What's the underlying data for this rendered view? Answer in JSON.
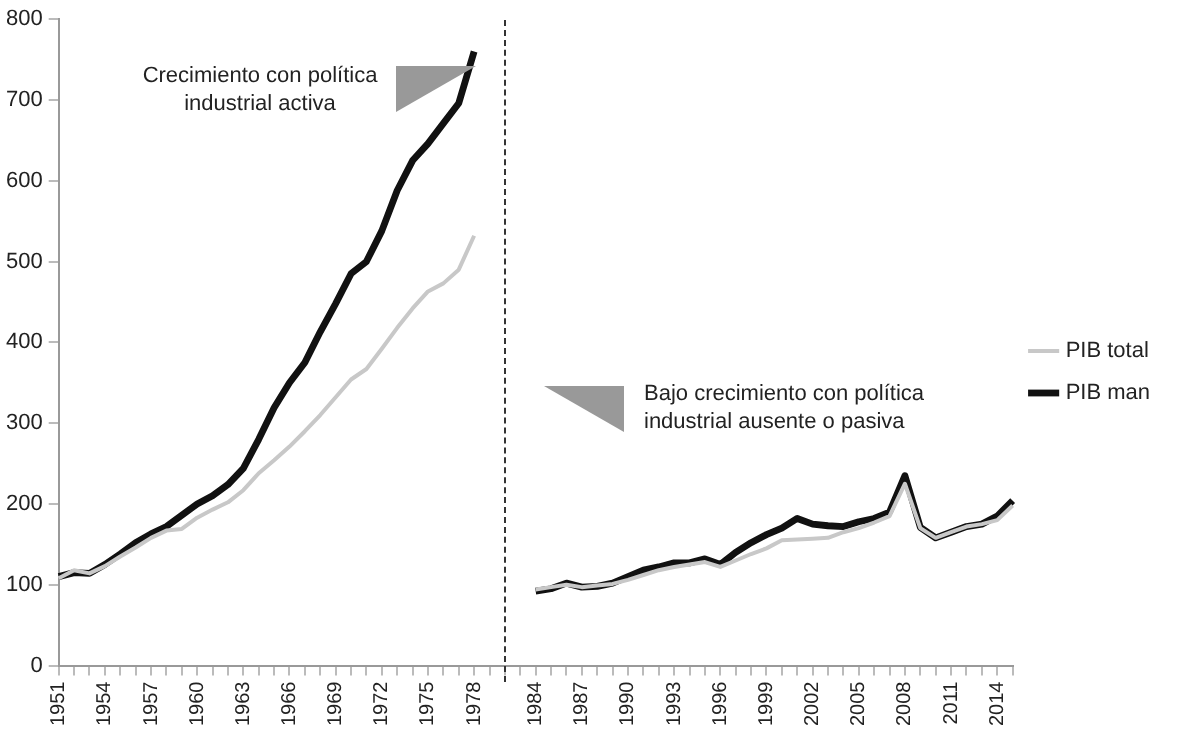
{
  "chart_data": {
    "type": "line",
    "categories": [
      "1951",
      null,
      null,
      "1954",
      null,
      null,
      "1957",
      null,
      null,
      "1960",
      null,
      null,
      "1963",
      null,
      null,
      "1966",
      null,
      null,
      "1969",
      null,
      null,
      "1972",
      null,
      null,
      "1975",
      null,
      null,
      "1978",
      null,
      null,
      null,
      "1984",
      null,
      null,
      "1987",
      null,
      null,
      "1990",
      null,
      null,
      "1993",
      null,
      null,
      "1996",
      null,
      null,
      "1999",
      null,
      null,
      "2002",
      null,
      null,
      "2005",
      null,
      null,
      "2008",
      null,
      null,
      "2011",
      null,
      null,
      "2014",
      null
    ],
    "series": [
      {
        "name": "PIB total",
        "color": "#c8c8c8",
        "values": [
          108,
          118,
          114,
          123,
          135,
          146,
          158,
          167,
          169,
          183,
          193,
          202,
          217,
          238,
          254,
          271,
          290,
          310,
          332,
          354,
          367,
          392,
          418,
          442,
          463,
          473,
          490,
          532,
          null,
          null,
          null,
          94,
          97,
          100,
          97,
          99,
          101,
          106,
          112,
          118,
          122,
          125,
          128,
          122,
          130,
          138,
          145,
          155,
          156,
          157,
          158,
          165,
          170,
          177,
          185,
          225,
          170,
          158,
          165,
          172,
          175,
          180,
          198
        ]
      },
      {
        "name": "PIB man",
        "color": "#111111",
        "values": [
          110,
          115,
          114,
          125,
          138,
          152,
          163,
          172,
          186,
          200,
          210,
          224,
          244,
          280,
          319,
          350,
          375,
          413,
          448,
          485,
          500,
          538,
          588,
          625,
          646,
          671,
          696,
          760,
          null,
          null,
          null,
          92,
          95,
          102,
          97,
          98,
          102,
          110,
          118,
          122,
          127,
          127,
          132,
          125,
          140,
          152,
          162,
          170,
          182,
          175,
          173,
          172,
          178,
          182,
          190,
          235,
          171,
          158,
          165,
          172,
          175,
          185,
          204
        ]
      }
    ],
    "ylim": [
      0,
      800
    ],
    "yticks": [
      0,
      100,
      200,
      300,
      400,
      500,
      600,
      700,
      800
    ],
    "legend": "right",
    "marker": "none",
    "line_style": "solid",
    "annotations": [
      "Crecimiento con política\nindustrial activa",
      "Bajo crecimiento con política\nindustrial ausente o pasiva"
    ]
  }
}
